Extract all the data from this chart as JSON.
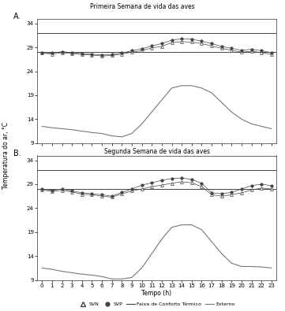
{
  "title_A": "Primeira Semana de vida das aves",
  "title_B": "Segunda Semana de vida das aves",
  "ylabel": "Temperatura do ar, °C",
  "xlabel": "Tempo (h)",
  "hours": [
    0,
    1,
    2,
    3,
    4,
    5,
    6,
    7,
    8,
    9,
    10,
    11,
    12,
    13,
    14,
    15,
    16,
    17,
    18,
    19,
    20,
    21,
    22,
    23
  ],
  "ylim": [
    9,
    35
  ],
  "yticks": [
    9,
    14,
    19,
    24,
    29,
    34
  ],
  "comfort_low": 28.0,
  "comfort_high": 32.0,
  "SVN_A": [
    27.8,
    27.6,
    27.9,
    27.7,
    27.5,
    27.4,
    27.2,
    27.3,
    27.6,
    28.0,
    28.3,
    28.9,
    29.2,
    30.0,
    30.2,
    30.1,
    29.8,
    29.3,
    28.8,
    28.4,
    28.0,
    28.2,
    27.9,
    27.5
  ],
  "SVP_A": [
    27.9,
    27.8,
    28.1,
    27.9,
    27.7,
    27.6,
    27.4,
    27.5,
    27.8,
    28.3,
    28.7,
    29.3,
    29.8,
    30.5,
    30.8,
    30.7,
    30.3,
    29.8,
    29.2,
    28.8,
    28.4,
    28.6,
    28.3,
    27.9
  ],
  "Ext_A": [
    12.5,
    12.2,
    12.0,
    11.8,
    11.5,
    11.2,
    11.0,
    10.5,
    10.3,
    11.0,
    13.0,
    15.5,
    18.0,
    20.5,
    21.0,
    21.0,
    20.5,
    19.5,
    17.5,
    15.5,
    14.0,
    13.0,
    12.5,
    12.0
  ],
  "SVN_B": [
    27.8,
    27.5,
    27.7,
    27.4,
    26.9,
    26.8,
    26.5,
    26.3,
    27.0,
    27.6,
    28.0,
    28.5,
    28.8,
    29.2,
    29.5,
    29.3,
    28.5,
    26.8,
    26.5,
    26.8,
    27.2,
    27.8,
    28.2,
    28.0
  ],
  "SVP_B": [
    28.0,
    27.7,
    28.0,
    27.6,
    27.2,
    27.0,
    26.8,
    26.5,
    27.3,
    28.0,
    28.8,
    29.3,
    29.8,
    30.2,
    30.3,
    30.0,
    29.2,
    27.2,
    27.0,
    27.3,
    28.0,
    28.7,
    29.0,
    28.7
  ],
  "Ext_B": [
    11.5,
    11.2,
    10.8,
    10.5,
    10.2,
    10.0,
    9.7,
    9.2,
    9.2,
    9.5,
    11.5,
    14.5,
    17.5,
    20.0,
    20.5,
    20.5,
    19.5,
    17.0,
    14.5,
    12.5,
    11.8,
    11.8,
    11.7,
    11.5
  ],
  "color_line": "#555555",
  "color_ext": "#888888",
  "background": "#ffffff"
}
